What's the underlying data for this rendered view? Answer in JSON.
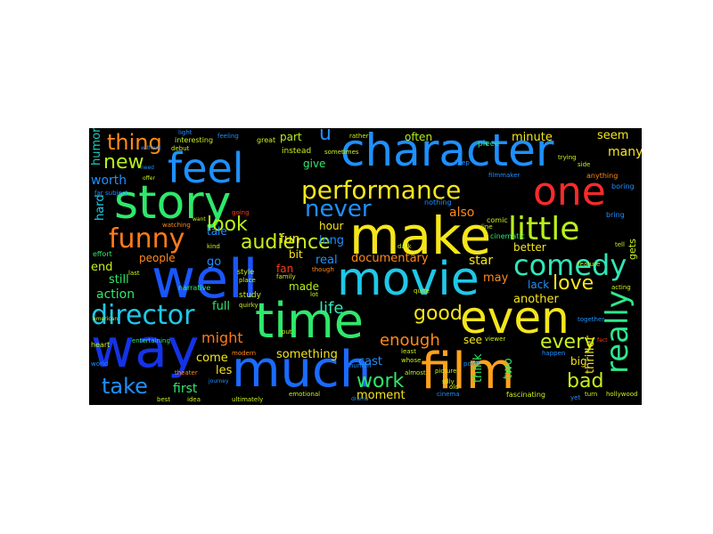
{
  "words": [
    {
      "key": "character",
      "text": "character",
      "color": "#1e90ff"
    },
    {
      "key": "feel",
      "text": "feel",
      "color": "#1e90ff"
    },
    {
      "key": "story",
      "text": "story",
      "color": "#2ee86b"
    },
    {
      "key": "one",
      "text": "one",
      "color": "#ff2a2a"
    },
    {
      "key": "make",
      "text": "make",
      "color": "#f5e61b"
    },
    {
      "key": "well",
      "text": "well",
      "color": "#1a56ff"
    },
    {
      "key": "movie",
      "text": "movie",
      "color": "#1ec8e8"
    },
    {
      "key": "even",
      "text": "even",
      "color": "#f5e61b"
    },
    {
      "key": "time",
      "text": "time",
      "color": "#2ee86b"
    },
    {
      "key": "way",
      "text": "way",
      "color": "#1433e6"
    },
    {
      "key": "much",
      "text": "much",
      "color": "#1a6bff"
    },
    {
      "key": "film",
      "text": "film",
      "color": "#ffa21a"
    },
    {
      "key": "performance",
      "text": "performance",
      "color": "#f5e61b"
    },
    {
      "key": "funny",
      "text": "funny",
      "color": "#ff7a1a"
    },
    {
      "key": "director",
      "text": "director",
      "color": "#1ec8e8"
    },
    {
      "key": "little",
      "text": "little",
      "color": "#b8f01a"
    },
    {
      "key": "comedy",
      "text": "comedy",
      "color": "#2ee8b8"
    },
    {
      "key": "really",
      "text": "really",
      "color": "#2ee88b"
    },
    {
      "key": "never",
      "text": "never",
      "color": "#1e90ff"
    },
    {
      "key": "audience",
      "text": "audience",
      "color": "#c8f01a"
    },
    {
      "key": "thing",
      "text": "thing",
      "color": "#ff8a1a"
    },
    {
      "key": "new",
      "text": "new",
      "color": "#b8f01a"
    },
    {
      "key": "look",
      "text": "look",
      "color": "#b8f01a"
    },
    {
      "key": "good",
      "text": "good",
      "color": "#f5e61b"
    },
    {
      "key": "love",
      "text": "love",
      "color": "#f5e61b"
    },
    {
      "key": "every",
      "text": "every",
      "color": "#c8f01a"
    },
    {
      "key": "take",
      "text": "take",
      "color": "#1e90ff"
    },
    {
      "key": "work",
      "text": "work",
      "color": "#2ee86b"
    },
    {
      "key": "bad",
      "text": "bad",
      "color": "#c8f01a"
    },
    {
      "key": "enough",
      "text": "enough",
      "color": "#ff8a1a"
    },
    {
      "key": "might",
      "text": "might",
      "color": "#ff7a1a"
    },
    {
      "key": "life",
      "text": "life",
      "color": "#2ee8b8"
    },
    {
      "key": "u",
      "text": "u",
      "color": "#1e90ff"
    },
    {
      "key": "often",
      "text": "often",
      "color": "#b8f01a"
    },
    {
      "key": "minute",
      "text": "minute",
      "color": "#f5e61b"
    },
    {
      "key": "seem",
      "text": "seem",
      "color": "#f5e61b"
    },
    {
      "key": "many",
      "text": "many",
      "color": "#f5e61b"
    },
    {
      "key": "part",
      "text": "part",
      "color": "#b8f01a"
    },
    {
      "key": "give",
      "text": "give",
      "color": "#2ee86b"
    },
    {
      "key": "hour",
      "text": "hour",
      "color": "#f5e61b"
    },
    {
      "key": "fun",
      "text": "fun",
      "color": "#f5e61b"
    },
    {
      "key": "bit",
      "text": "bit",
      "color": "#f5e61b"
    },
    {
      "key": "fan",
      "text": "fan",
      "color": "#ff3a1a"
    },
    {
      "key": "real",
      "text": "real",
      "color": "#1e90ff"
    },
    {
      "key": "documentary",
      "text": "documentary",
      "color": "#ff8a1a"
    },
    {
      "key": "star",
      "text": "star",
      "color": "#f5e61b"
    },
    {
      "key": "better",
      "text": "better",
      "color": "#f5e61b"
    },
    {
      "key": "may",
      "text": "may",
      "color": "#ff8a1a"
    },
    {
      "key": "lack",
      "text": "lack",
      "color": "#1e90ff"
    },
    {
      "key": "another",
      "text": "another",
      "color": "#f5e61b"
    },
    {
      "key": "tale",
      "text": "tale",
      "color": "#1e90ff"
    },
    {
      "key": "go",
      "text": "go",
      "color": "#1e90ff"
    },
    {
      "key": "people",
      "text": "people",
      "color": "#ff8a1a"
    },
    {
      "key": "end",
      "text": "end",
      "color": "#c8f01a"
    },
    {
      "key": "still",
      "text": "still",
      "color": "#2ee86b"
    },
    {
      "key": "action",
      "text": "action",
      "color": "#2ee86b"
    },
    {
      "key": "made",
      "text": "made",
      "color": "#b8f01a"
    },
    {
      "key": "full",
      "text": "full",
      "color": "#2ee86b"
    },
    {
      "key": "come",
      "text": "come",
      "color": "#f5e61b"
    },
    {
      "key": "les",
      "text": "les",
      "color": "#f5e61b"
    },
    {
      "key": "first",
      "text": "first",
      "color": "#2ee86b"
    },
    {
      "key": "something",
      "text": "something",
      "color": "#f5e61b"
    },
    {
      "key": "cast",
      "text": "cast",
      "color": "#1e90ff"
    },
    {
      "key": "moment",
      "text": "moment",
      "color": "#f5e61b"
    },
    {
      "key": "see",
      "text": "see",
      "color": "#f5e61b"
    },
    {
      "key": "two",
      "text": "two",
      "color": "#2ee86b"
    },
    {
      "key": "big",
      "text": "big",
      "color": "#f5e61b"
    },
    {
      "key": "think",
      "text": "think",
      "color": "#2ee86b"
    },
    {
      "key": "thriller",
      "text": "thriller",
      "color": "#f5e61b"
    },
    {
      "key": "worth",
      "text": "worth",
      "color": "#1e90ff"
    },
    {
      "key": "humor",
      "text": "humor",
      "color": "#1ec8b8"
    },
    {
      "key": "hard",
      "text": "hard",
      "color": "#1ec8e8"
    },
    {
      "key": "long",
      "text": "long",
      "color": "#1e90ff"
    },
    {
      "key": "also",
      "text": "also",
      "color": "#ff8a1a"
    },
    {
      "key": "gets",
      "text": "gets",
      "color": "#c8f01a"
    },
    {
      "key": "interesting",
      "text": "interesting",
      "color": "#c8f01a"
    },
    {
      "key": "instead",
      "text": "instead",
      "color": "#c8f01a"
    },
    {
      "key": "piece",
      "text": "piece",
      "color": "#2ee86b"
    },
    {
      "key": "great",
      "text": "great",
      "color": "#c8f01a"
    },
    {
      "key": "rather",
      "text": "rather",
      "color": "#c8f01a"
    },
    {
      "key": "anything",
      "text": "anything",
      "color": "#ff8a1a"
    },
    {
      "key": "boring",
      "text": "boring",
      "color": "#1e90ff"
    },
    {
      "key": "fascinating",
      "text": "fascinating",
      "color": "#c8f01a"
    },
    {
      "key": "cinema",
      "text": "cinema",
      "color": "#1e90ff"
    },
    {
      "key": "emotional",
      "text": "emotional",
      "color": "#c8f01a"
    },
    {
      "key": "drama",
      "text": "drama",
      "color": "#1e90ff"
    },
    {
      "key": "hollywood",
      "text": "hollywood",
      "color": "#c8f01a"
    },
    {
      "key": "entertaining",
      "text": "entertaining",
      "color": "#2ee86b"
    },
    {
      "key": "quite",
      "text": "quite",
      "color": "#c8f01a"
    },
    {
      "key": "picture",
      "text": "picture",
      "color": "#c8f01a"
    },
    {
      "key": "silly",
      "text": "silly",
      "color": "#c8f01a"
    },
    {
      "key": "human",
      "text": "human",
      "color": "#1e90ff"
    },
    {
      "key": "study",
      "text": "study",
      "color": "#c8f01a"
    },
    {
      "key": "style",
      "text": "style",
      "color": "#c8f01a"
    },
    {
      "key": "place",
      "text": "place",
      "color": "#c8f01a"
    },
    {
      "key": "family",
      "text": "family",
      "color": "#c8f01a"
    },
    {
      "key": "comic",
      "text": "comic",
      "color": "#c8f01a"
    },
    {
      "key": "cinematic",
      "text": "cinematic",
      "color": "#2ee86b"
    },
    {
      "key": "effort",
      "text": "effort",
      "color": "#2ee86b"
    },
    {
      "key": "narrative",
      "text": "narrative",
      "color": "#2ee86b"
    },
    {
      "key": "feature",
      "text": "feature",
      "color": "#c8f01a"
    },
    {
      "key": "last",
      "text": "last",
      "color": "#c8f01a"
    },
    {
      "key": "kind",
      "text": "kind",
      "color": "#c8f01a"
    },
    {
      "key": "watching",
      "text": "watching",
      "color": "#ff8a1a"
    },
    {
      "key": "going",
      "text": "going",
      "color": "#ff3a1a"
    },
    {
      "key": "nothing",
      "text": "nothing",
      "color": "#1e90ff"
    },
    {
      "key": "sometimes",
      "text": "sometimes",
      "color": "#c8f01a"
    },
    {
      "key": "feeling",
      "text": "feeling",
      "color": "#1e90ff"
    },
    {
      "key": "debut",
      "text": "debut",
      "color": "#c8f01a"
    },
    {
      "key": "light",
      "text": "light",
      "color": "#1e90ff"
    },
    {
      "key": "viewer",
      "text": "viewer",
      "color": "#c8f01a"
    },
    {
      "key": "turn",
      "text": "turn",
      "color": "#c8f01a"
    },
    {
      "key": "almost",
      "text": "almost",
      "color": "#c8f01a"
    },
    {
      "key": "modern",
      "text": "modern",
      "color": "#ff8a1a"
    },
    {
      "key": "theater",
      "text": "theater",
      "color": "#ff8a1a"
    },
    {
      "key": "journey",
      "text": "journey",
      "color": "#1e90ff"
    },
    {
      "key": "ultimately",
      "text": "ultimately",
      "color": "#c8f01a"
    },
    {
      "key": "best",
      "text": "best",
      "color": "#c8f01a"
    },
    {
      "key": "point",
      "text": "point",
      "color": "#1e90ff"
    },
    {
      "key": "keep",
      "text": "keep",
      "color": "#1e90ff"
    },
    {
      "key": "filmmaker",
      "text": "filmmaker",
      "color": "#1e90ff"
    },
    {
      "key": "old",
      "text": "old",
      "color": "#c8f01a"
    },
    {
      "key": "lot",
      "text": "lot",
      "color": "#c8f01a"
    },
    {
      "key": "put",
      "text": "put",
      "color": "#c8f01a"
    },
    {
      "key": "though",
      "text": "though",
      "color": "#ff8a1a"
    },
    {
      "key": "without",
      "text": "without",
      "color": "#1e90ff"
    },
    {
      "key": "need",
      "text": "need",
      "color": "#1e90ff"
    },
    {
      "key": "offer",
      "text": "offer",
      "color": "#c8f01a"
    },
    {
      "key": "far",
      "text": "far",
      "color": "#1e90ff"
    },
    {
      "key": "subject",
      "text": "subject",
      "color": "#1e90ff"
    },
    {
      "key": "want",
      "text": "want",
      "color": "#c8f01a"
    },
    {
      "key": "bring",
      "text": "bring",
      "color": "#1e90ff"
    },
    {
      "key": "tell",
      "text": "tell",
      "color": "#c8f01a"
    },
    {
      "key": "yet",
      "text": "yet",
      "color": "#1e90ff"
    },
    {
      "key": "heart",
      "text": "heart",
      "color": "#c8f01a"
    },
    {
      "key": "happen",
      "text": "happen",
      "color": "#1e90ff"
    },
    {
      "key": "fact",
      "text": "fact",
      "color": "#ff3a1a"
    },
    {
      "key": "least",
      "text": "least",
      "color": "#c8f01a"
    },
    {
      "key": "whose",
      "text": "whose",
      "color": "#c8f01a"
    },
    {
      "key": "quirky",
      "text": "quirky",
      "color": "#c8f01a"
    },
    {
      "key": "trying",
      "text": "trying",
      "color": "#c8f01a"
    },
    {
      "key": "side",
      "text": "side",
      "color": "#c8f01a"
    },
    {
      "key": "line",
      "text": "line",
      "color": "#c8f01a"
    },
    {
      "key": "acting",
      "text": "acting",
      "color": "#c8f01a"
    },
    {
      "key": "together",
      "text": "together",
      "color": "#1e90ff"
    },
    {
      "key": "american",
      "text": "american",
      "color": "#c8f01a"
    },
    {
      "key": "world",
      "text": "world",
      "color": "#1e90ff"
    },
    {
      "key": "idea",
      "text": "idea",
      "color": "#c8f01a"
    },
    {
      "key": "dark",
      "text": "dark",
      "color": "#c8f01a"
    }
  ]
}
